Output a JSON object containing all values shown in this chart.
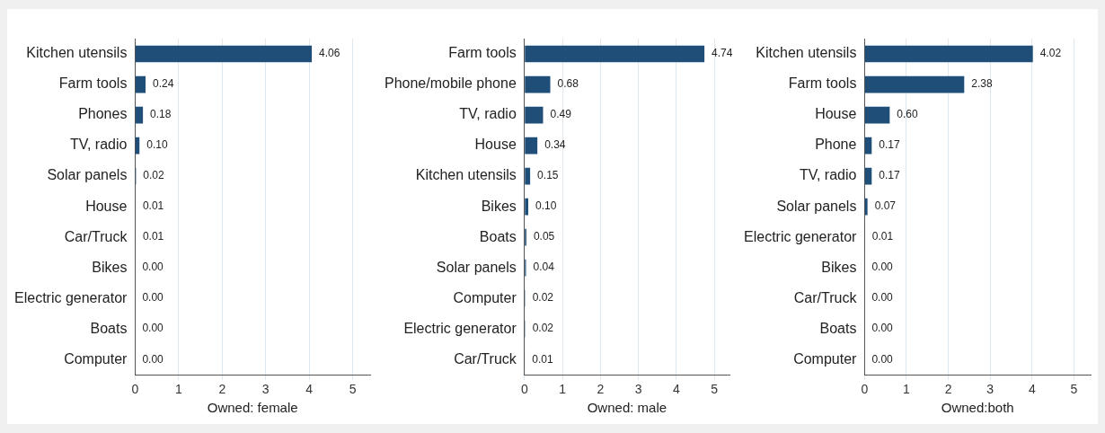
{
  "chart_data": [
    {
      "type": "bar",
      "orientation": "horizontal",
      "categories": [
        "Kitchen utensils",
        "Farm tools",
        "Phones",
        "TV, radio",
        "Solar panels",
        "House",
        "Car/Truck",
        "Bikes",
        "Electric generator",
        "Boats",
        "Computer"
      ],
      "values": [
        4.06,
        0.24,
        0.18,
        0.1,
        0.02,
        0.01,
        0.01,
        0,
        0,
        0,
        0
      ],
      "value_labels": [
        "4.06",
        "0.24",
        "0.18",
        "0.10",
        "0.02",
        "0.01",
        "0.01",
        "0.00",
        "0.00",
        "0.00",
        "0.00"
      ],
      "color": "#1f4e79",
      "xlim": [
        0,
        5.4
      ],
      "xticks": [
        0,
        1,
        2,
        3,
        4,
        5
      ],
      "xlabel": "Owned: female",
      "grid": "x",
      "legend": false
    },
    {
      "type": "bar",
      "orientation": "horizontal",
      "categories": [
        "Farm tools",
        "Phone/mobile phone",
        "TV, radio",
        "House",
        "Kitchen utensils",
        "Bikes",
        "Boats",
        "Solar panels",
        "Computer",
        "Electric generator",
        "Car/Truck"
      ],
      "values": [
        4.74,
        0.68,
        0.49,
        0.34,
        0.15,
        0.1,
        0.05,
        0.04,
        0.02,
        0.02,
        0.01
      ],
      "value_labels": [
        "4.74",
        "0.68",
        "0.49",
        "0.34",
        "0.15",
        "0.10",
        "0.05",
        "0.04",
        "0.02",
        "0.02",
        "0.01"
      ],
      "color": "#1f4e79",
      "xlim": [
        0,
        5.4
      ],
      "xticks": [
        0,
        1,
        2,
        3,
        4,
        5
      ],
      "xlabel": "Owned: male",
      "grid": "x",
      "legend": false
    },
    {
      "type": "bar",
      "orientation": "horizontal",
      "categories": [
        "Kitchen utensils",
        "Farm tools",
        "House",
        "Phone",
        "TV, radio",
        "Solar panels",
        "Electric generator",
        "Bikes",
        "Car/Truck",
        "Boats",
        "Computer"
      ],
      "values": [
        4.02,
        2.38,
        0.6,
        0.17,
        0.17,
        0.07,
        0.01,
        0,
        0,
        0,
        0
      ],
      "value_labels": [
        "4.02",
        "2.38",
        "0.60",
        "0.17",
        "0.17",
        "0.07",
        "0.01",
        "0.00",
        "0.00",
        "0.00",
        "0.00"
      ],
      "color": "#1f4e79",
      "xlim": [
        0,
        5.4
      ],
      "xticks": [
        0,
        1,
        2,
        3,
        4,
        5
      ],
      "xlabel": "Owned:both",
      "grid": "x",
      "legend": false
    }
  ]
}
